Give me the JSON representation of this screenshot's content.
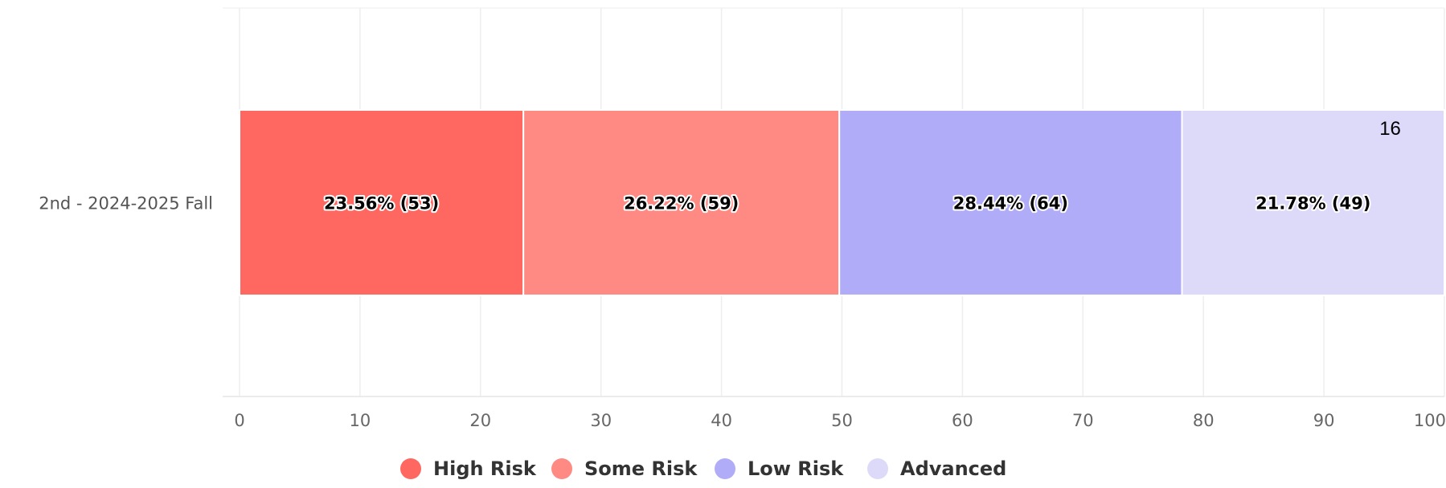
{
  "chart_data": {
    "type": "bar",
    "orientation": "horizontal",
    "stacked": true,
    "categories": [
      "2nd - 2024-2025 Fall"
    ],
    "series": [
      {
        "name": "High Risk",
        "values": [
          23.56
        ],
        "counts": [
          53
        ],
        "label": "23.56% (53)",
        "color": "#ff6860"
      },
      {
        "name": "Some Risk",
        "values": [
          26.22
        ],
        "counts": [
          59
        ],
        "label": "26.22% (59)",
        "color": "#ff8a84"
      },
      {
        "name": "Low Risk",
        "values": [
          28.44
        ],
        "counts": [
          64
        ],
        "label": "28.44% (64)",
        "color": "#b0acf8"
      },
      {
        "name": "Advanced",
        "values": [
          21.78
        ],
        "counts": [
          49
        ],
        "label": "21.78% (49)",
        "color": "#dcdaf8"
      }
    ],
    "xlim": [
      0,
      100
    ],
    "xticks": [
      "0",
      "10",
      "20",
      "30",
      "40",
      "50",
      "60",
      "70",
      "80",
      "90",
      "100"
    ],
    "grid": true,
    "legend_position": "bottom",
    "annotations": [
      {
        "text": "16",
        "x": 95.5
      }
    ],
    "title": "",
    "xlabel": "",
    "ylabel": ""
  }
}
